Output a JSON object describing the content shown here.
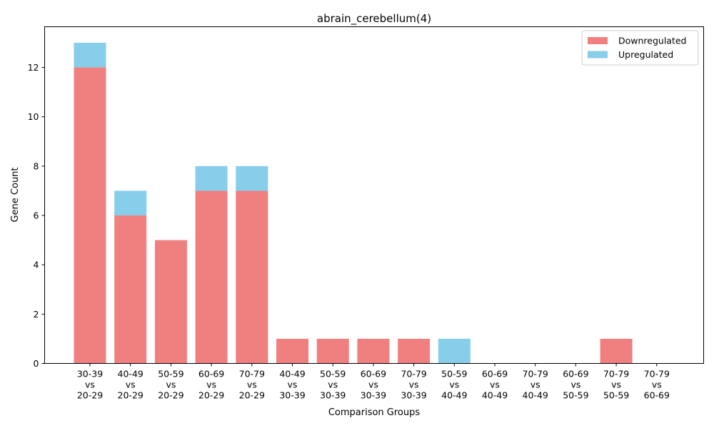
{
  "chart_data": {
    "type": "bar",
    "stacked": true,
    "title": "abrain_cerebellum(4)",
    "xlabel": "Comparison Groups",
    "ylabel": "Gene Count",
    "ylim": [
      0,
      13.65
    ],
    "yticks": [
      0,
      2,
      4,
      6,
      8,
      10,
      12
    ],
    "grid": false,
    "legend_position": "top-right",
    "categories": [
      [
        "30-39",
        "vs",
        "20-29"
      ],
      [
        "40-49",
        "vs",
        "20-29"
      ],
      [
        "50-59",
        "vs",
        "20-29"
      ],
      [
        "60-69",
        "vs",
        "20-29"
      ],
      [
        "70-79",
        "vs",
        "20-29"
      ],
      [
        "40-49",
        "vs",
        "30-39"
      ],
      [
        "50-59",
        "vs",
        "30-39"
      ],
      [
        "60-69",
        "vs",
        "30-39"
      ],
      [
        "70-79",
        "vs",
        "30-39"
      ],
      [
        "50-59",
        "vs",
        "40-49"
      ],
      [
        "60-69",
        "vs",
        "40-49"
      ],
      [
        "70-79",
        "vs",
        "40-49"
      ],
      [
        "60-69",
        "vs",
        "50-59"
      ],
      [
        "70-79",
        "vs",
        "50-59"
      ],
      [
        "70-79",
        "vs",
        "60-69"
      ]
    ],
    "series": [
      {
        "name": "Downregulated",
        "color": "#f08080",
        "values": [
          12,
          6,
          5,
          7,
          7,
          1,
          1,
          1,
          1,
          0,
          0,
          0,
          0,
          1,
          0
        ]
      },
      {
        "name": "Upregulated",
        "color": "#87ceeb",
        "values": [
          1,
          1,
          0,
          1,
          1,
          0,
          0,
          0,
          0,
          1,
          0,
          0,
          0,
          0,
          0
        ]
      }
    ]
  }
}
